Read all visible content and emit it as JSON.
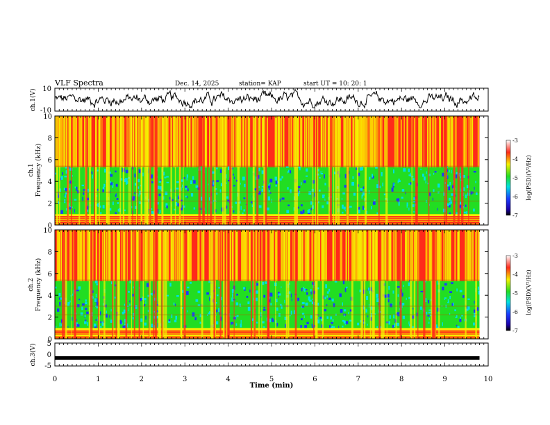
{
  "header": {
    "title": "VLF Spectra",
    "date": "Dec. 14, 2025",
    "station": "station= KAP",
    "start_ut": "start  UT  =    10: 20: 1"
  },
  "chart_data": [
    {
      "type": "line",
      "ylabel": "ch.1(V)",
      "ylim": [
        -10,
        10
      ],
      "ytick_labels": [
        "10",
        "-10"
      ],
      "xlim": [
        0,
        10
      ],
      "data_end_min": 9.8,
      "series": [
        {
          "name": "ch.1 waveform",
          "mean": 0,
          "amplitude_range": [
            -7,
            9
          ]
        }
      ]
    },
    {
      "type": "heatmap",
      "name": "ch.1 spectrogram",
      "ylabel": "ch.1\nFrequency (kHz)",
      "ylim": [
        0,
        10
      ],
      "ytick_labels": [
        "0",
        "2",
        "4",
        "6",
        "8",
        "10"
      ],
      "xlim": [
        0,
        10
      ],
      "data_end_min": 9.8,
      "colorbar": {
        "label": "log(PSD)(V²/Hz)",
        "range": [
          -7,
          -3
        ],
        "tick_labels": [
          "-3",
          "-4",
          "-5",
          "-6",
          "-7"
        ]
      }
    },
    {
      "type": "heatmap",
      "name": "ch.2 spectrogram",
      "ylabel": "ch.2\nFrequency (kHz)",
      "ylim": [
        0,
        10
      ],
      "ytick_labels": [
        "0",
        "2",
        "4",
        "6",
        "8",
        "10"
      ],
      "xlim": [
        0,
        10
      ],
      "data_end_min": 9.8,
      "colorbar": {
        "label": "log(PSD)(V²/Hz)",
        "range": [
          -7,
          -3
        ],
        "tick_labels": [
          "-3",
          "-4",
          "-5",
          "-6",
          "-7"
        ]
      }
    },
    {
      "type": "line",
      "ylabel": "ch.3(V)",
      "ylim": [
        -5,
        5
      ],
      "ytick_labels": [
        "5",
        "0",
        "-5"
      ],
      "xlim": [
        0,
        10
      ],
      "data_end_min": 9.8,
      "series": [
        {
          "name": "ch.3 signal",
          "value": -1.5
        }
      ]
    }
  ],
  "xaxis": {
    "label": "Time  (min)",
    "tick_labels": [
      "0",
      "1",
      "2",
      "3",
      "4",
      "5",
      "6",
      "7",
      "8",
      "9",
      "10"
    ]
  },
  "colors": {
    "red": "#ff2a1a",
    "yellow": "#f5f000",
    "green": "#22dd22",
    "cyan": "#00e0e0",
    "blue": "#1a3cff",
    "trace": "#000000"
  }
}
